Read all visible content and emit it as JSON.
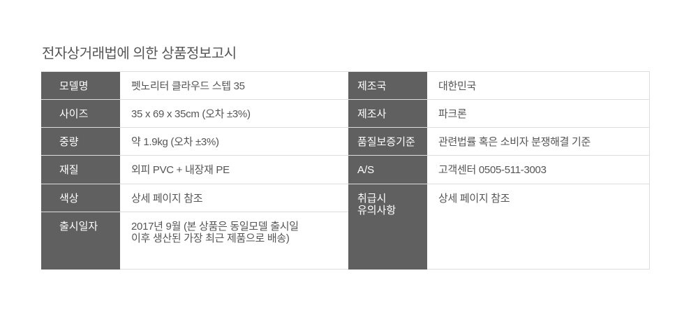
{
  "title": "전자상거래법에 의한 상품정보고시",
  "left": [
    {
      "label": "모델명",
      "value": "펫노리터 클라우드 스텝 35"
    },
    {
      "label": "사이즈",
      "value": "35 x 69 x 35cm (오차 ±3%)"
    },
    {
      "label": "중량",
      "value": "약 1.9kg (오차 ±3%)"
    },
    {
      "label": "재질",
      "value": "외피 PVC + 내장재 PE"
    },
    {
      "label": "색상",
      "value": "상세 페이지 참조"
    },
    {
      "label": "출시일자",
      "value_line1": "2017년 9월 (본 상품은 동일모델 출시일",
      "value_line2": "이후 생산된 가장 최근 제품으로 배송)"
    }
  ],
  "right": [
    {
      "label": "제조국",
      "value": "대한민국"
    },
    {
      "label": "제조사",
      "value": "파크론"
    },
    {
      "label": "품질보증기준",
      "value": "관련법률 혹은 소비자 분쟁해결 기준"
    },
    {
      "label": "A/S",
      "value": "고객센터 0505-511-3003"
    },
    {
      "label_line1": "취급시",
      "label_line2": "유의사항",
      "value": "상세 페이지 참조"
    }
  ]
}
